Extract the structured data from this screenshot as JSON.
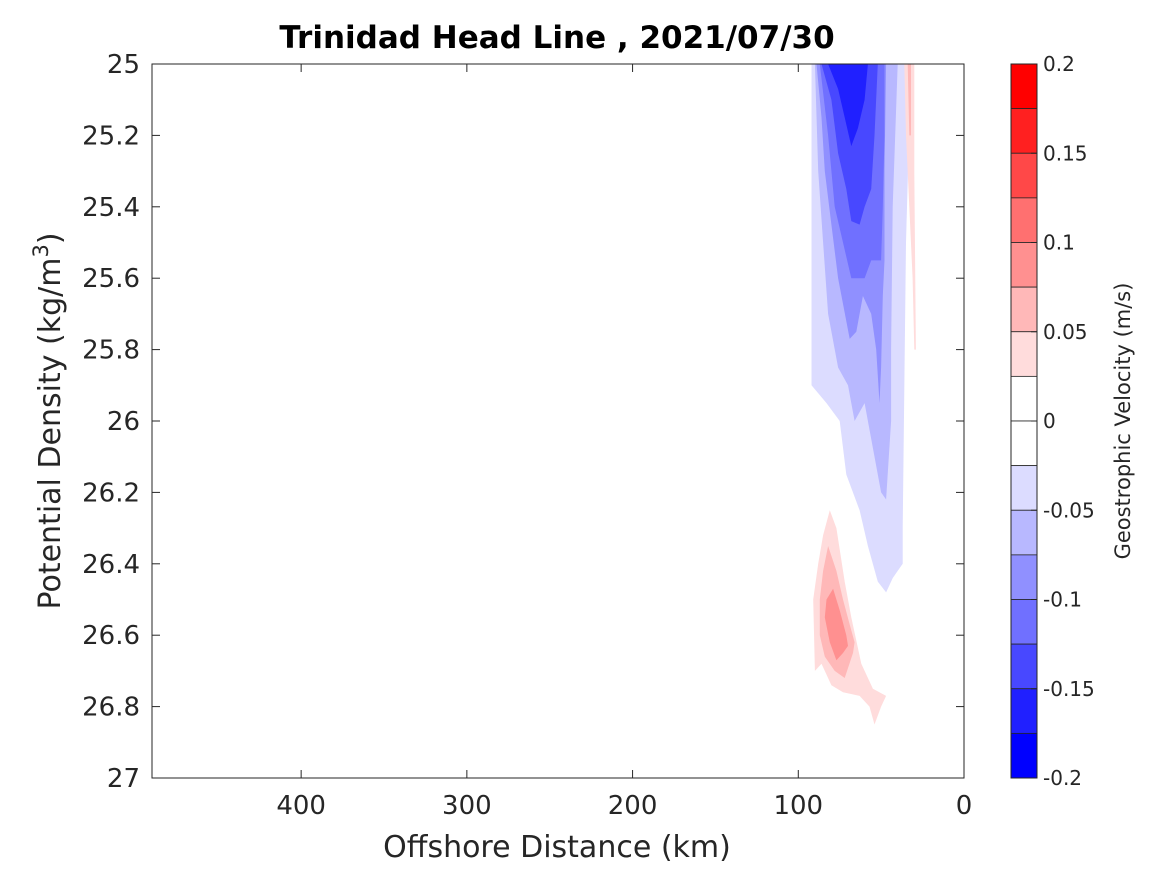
{
  "chart_data": {
    "type": "heatmap",
    "title": "Trinidad Head Line , 2021/07/30",
    "xlabel": "Offshore Distance (km)",
    "ylabel_main": "Potential Density (kg/m",
    "ylabel_sup": "3",
    "ylabel_close": ")",
    "xlim": [
      490,
      0
    ],
    "ylim": [
      25,
      27
    ],
    "y_reversed": true,
    "x_reversed": true,
    "x_ticks": [
      {
        "value": 400,
        "label": "400"
      },
      {
        "value": 300,
        "label": "300"
      },
      {
        "value": 200,
        "label": "200"
      },
      {
        "value": 100,
        "label": "100"
      },
      {
        "value": 0,
        "label": "0"
      }
    ],
    "y_ticks": [
      {
        "value": 25,
        "label": "25"
      },
      {
        "value": 25.2,
        "label": "25.2"
      },
      {
        "value": 25.4,
        "label": "25.4"
      },
      {
        "value": 25.6,
        "label": "25.6"
      },
      {
        "value": 25.8,
        "label": "25.8"
      },
      {
        "value": 26,
        "label": "26"
      },
      {
        "value": 26.2,
        "label": "26.2"
      },
      {
        "value": 26.4,
        "label": "26.4"
      },
      {
        "value": 26.6,
        "label": "26.6"
      },
      {
        "value": 26.8,
        "label": "26.8"
      },
      {
        "value": 27,
        "label": "27"
      }
    ],
    "colorbar": {
      "label": "Geostrophic Velocity (m/s)",
      "range": [
        -0.2,
        0.2
      ],
      "ticks": [
        {
          "value": 0.2,
          "label": "0.2"
        },
        {
          "value": 0.15,
          "label": "0.15"
        },
        {
          "value": 0.1,
          "label": "0.1"
        },
        {
          "value": 0.05,
          "label": "0.05"
        },
        {
          "value": 0,
          "label": "0"
        },
        {
          "value": -0.05,
          "label": "-0.05"
        },
        {
          "value": -0.1,
          "label": "-0.1"
        },
        {
          "value": -0.15,
          "label": "-0.15"
        },
        {
          "value": -0.2,
          "label": "-0.2"
        }
      ],
      "bands": [
        {
          "from": 0.175,
          "to": 0.2,
          "color": "#ff0000"
        },
        {
          "from": 0.15,
          "to": 0.175,
          "color": "#ff2020"
        },
        {
          "from": 0.125,
          "to": 0.15,
          "color": "#ff4848"
        },
        {
          "from": 0.1,
          "to": 0.125,
          "color": "#ff7070"
        },
        {
          "from": 0.075,
          "to": 0.1,
          "color": "#ff9090"
        },
        {
          "from": 0.05,
          "to": 0.075,
          "color": "#ffb8b8"
        },
        {
          "from": 0.025,
          "to": 0.05,
          "color": "#ffdcdc"
        },
        {
          "from": 0.0,
          "to": 0.025,
          "color": "#ffffff"
        },
        {
          "from": -0.025,
          "to": 0.0,
          "color": "#ffffff"
        },
        {
          "from": -0.05,
          "to": -0.025,
          "color": "#dcdcff"
        },
        {
          "from": -0.075,
          "to": -0.05,
          "color": "#b8b8ff"
        },
        {
          "from": -0.1,
          "to": -0.075,
          "color": "#9090ff"
        },
        {
          "from": -0.125,
          "to": -0.1,
          "color": "#7070ff"
        },
        {
          "from": -0.15,
          "to": -0.125,
          "color": "#4848ff"
        },
        {
          "from": -0.175,
          "to": -0.15,
          "color": "#2020ff"
        },
        {
          "from": -0.2,
          "to": -0.175,
          "color": "#0000ff"
        }
      ]
    },
    "contour_regions": [
      {
        "name": "neg-band-1",
        "color": "#dcdcff",
        "points": [
          [
            92,
            25
          ],
          [
            32,
            25
          ],
          [
            35,
            25.5
          ],
          [
            37,
            26.3
          ],
          [
            37,
            26.4
          ],
          [
            40,
            26.42
          ],
          [
            43,
            26.44
          ],
          [
            47,
            26.48
          ],
          [
            52,
            26.45
          ],
          [
            58,
            26.35
          ],
          [
            63,
            26.25
          ],
          [
            71,
            26.15
          ],
          [
            75,
            26.0
          ],
          [
            83,
            25.95
          ],
          [
            92,
            25.9
          ]
        ]
      },
      {
        "name": "neg-band-2",
        "color": "#b8b8ff",
        "points": [
          [
            90,
            25
          ],
          [
            40,
            25
          ],
          [
            43,
            25.4
          ],
          [
            44,
            25.8
          ],
          [
            44,
            26.0
          ],
          [
            47,
            26.22
          ],
          [
            50,
            26.2
          ],
          [
            56,
            26.05
          ],
          [
            60,
            25.95
          ],
          [
            66,
            26.0
          ],
          [
            70,
            25.9
          ],
          [
            76,
            25.85
          ],
          [
            82,
            25.7
          ],
          [
            85,
            25.5
          ],
          [
            88,
            25.3
          ]
        ]
      },
      {
        "name": "neg-band-3",
        "color": "#9090ff",
        "points": [
          [
            89,
            25
          ],
          [
            47,
            25
          ],
          [
            48,
            25.3
          ],
          [
            48,
            25.55
          ],
          [
            49,
            25.65
          ],
          [
            50,
            25.85
          ],
          [
            51,
            25.95
          ],
          [
            53,
            25.8
          ],
          [
            56,
            25.7
          ],
          [
            61,
            25.65
          ],
          [
            65,
            25.75
          ],
          [
            69,
            25.77
          ],
          [
            76,
            25.6
          ],
          [
            80,
            25.45
          ],
          [
            84,
            25.3
          ],
          [
            86,
            25.15
          ]
        ]
      },
      {
        "name": "neg-band-4",
        "color": "#7070ff",
        "points": [
          [
            87,
            25
          ],
          [
            48,
            25
          ],
          [
            48,
            25.2
          ],
          [
            49,
            25.4
          ],
          [
            50,
            25.55
          ],
          [
            56,
            25.55
          ],
          [
            60,
            25.6
          ],
          [
            64,
            25.6
          ],
          [
            68,
            25.6
          ],
          [
            73,
            25.5
          ],
          [
            78,
            25.4
          ],
          [
            82,
            25.2
          ]
        ]
      },
      {
        "name": "neg-band-5",
        "color": "#4848ff",
        "points": [
          [
            86,
            25
          ],
          [
            52,
            25
          ],
          [
            54,
            25.2
          ],
          [
            56,
            25.35
          ],
          [
            60,
            25.4
          ],
          [
            63,
            25.45
          ],
          [
            68,
            25.44
          ],
          [
            71,
            25.35
          ],
          [
            76,
            25.25
          ],
          [
            80,
            25.1
          ]
        ]
      },
      {
        "name": "neg-band-6",
        "color": "#2020ff",
        "points": [
          [
            82,
            25
          ],
          [
            58,
            25
          ],
          [
            60,
            25.1
          ],
          [
            64,
            25.18
          ],
          [
            68,
            25.23
          ],
          [
            72,
            25.15
          ],
          [
            76,
            25.07
          ]
        ]
      },
      {
        "name": "pos-upper-1",
        "color": "#ffdcdc",
        "points": [
          [
            36,
            25
          ],
          [
            30,
            25
          ],
          [
            30,
            25.3
          ],
          [
            29,
            25.8
          ],
          [
            30,
            25.8
          ],
          [
            31,
            25.6
          ],
          [
            33,
            25.4
          ],
          [
            35,
            25.2
          ]
        ]
      },
      {
        "name": "pos-upper-2",
        "color": "#ffb8b8",
        "points": [
          [
            34,
            25
          ],
          [
            32,
            25
          ],
          [
            32,
            25.2
          ],
          [
            33,
            25.2
          ]
        ]
      },
      {
        "name": "pos-lower-1",
        "color": "#ffdcdc",
        "points": [
          [
            81,
            26.25
          ],
          [
            77,
            26.3
          ],
          [
            72,
            26.45
          ],
          [
            68,
            26.55
          ],
          [
            62,
            26.68
          ],
          [
            55,
            26.75
          ],
          [
            47,
            26.77
          ],
          [
            50,
            26.8
          ],
          [
            54,
            26.85
          ],
          [
            57,
            26.8
          ],
          [
            63,
            26.77
          ],
          [
            73,
            26.76
          ],
          [
            80,
            26.74
          ],
          [
            86,
            26.68
          ],
          [
            90,
            26.7
          ],
          [
            91,
            26.5
          ],
          [
            88,
            26.4
          ],
          [
            85,
            26.32
          ]
        ]
      },
      {
        "name": "pos-lower-2",
        "color": "#ffb8b8",
        "points": [
          [
            82,
            26.35
          ],
          [
            77,
            26.42
          ],
          [
            73,
            26.5
          ],
          [
            69,
            26.57
          ],
          [
            66,
            26.62
          ],
          [
            67,
            26.65
          ],
          [
            72,
            26.72
          ],
          [
            78,
            26.7
          ],
          [
            84,
            26.66
          ],
          [
            87,
            26.6
          ],
          [
            87,
            26.5
          ],
          [
            85,
            26.42
          ]
        ]
      },
      {
        "name": "pos-lower-3",
        "color": "#ff9090",
        "points": [
          [
            79,
            26.47
          ],
          [
            75,
            26.53
          ],
          [
            71,
            26.6
          ],
          [
            70,
            26.63
          ],
          [
            73,
            26.65
          ],
          [
            77,
            26.67
          ],
          [
            81,
            26.62
          ],
          [
            84,
            26.55
          ],
          [
            83,
            26.5
          ]
        ]
      }
    ]
  }
}
